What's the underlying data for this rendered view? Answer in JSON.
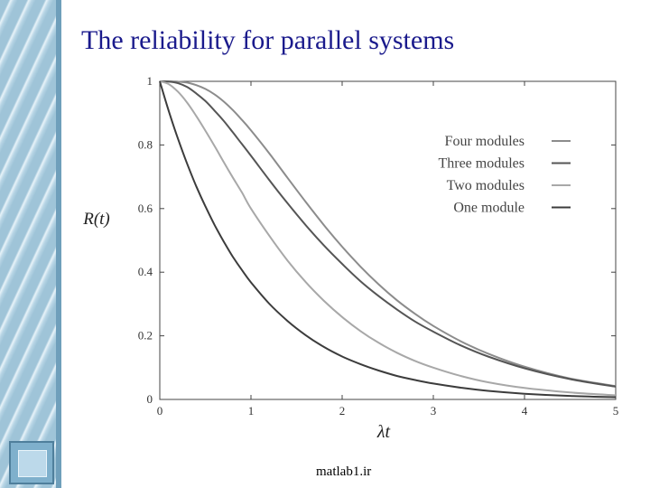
{
  "slide": {
    "title": "The reliability for parallel systems",
    "footer": "matlab1.ir"
  },
  "colors": {
    "title": "#1a1a8c",
    "sidebar": "#9fc4d8"
  },
  "chart_data": {
    "type": "line",
    "title": "",
    "xlabel": "λt",
    "ylabel": "R(t)",
    "xlim": [
      0,
      5
    ],
    "ylim": [
      0,
      1
    ],
    "xticks": [
      "0",
      "1",
      "2",
      "3",
      "4",
      "5"
    ],
    "yticks": [
      "0",
      "0.2",
      "0.4",
      "0.6",
      "0.8",
      "1"
    ],
    "legend_position": "top-right",
    "x": [
      0,
      0.1,
      0.2,
      0.3,
      0.4,
      0.5,
      0.6,
      0.7,
      0.8,
      0.9,
      1.0,
      1.2,
      1.4,
      1.6,
      1.8,
      2.0,
      2.2,
      2.4,
      2.6,
      2.8,
      3.0,
      3.3,
      3.6,
      4.0,
      4.5,
      5.0
    ],
    "series": [
      {
        "name": "Four modules",
        "color": "#8c8c8c",
        "values": [
          1.0,
          1.0,
          0.999,
          0.996,
          0.988,
          0.976,
          0.959,
          0.937,
          0.91,
          0.879,
          0.846,
          0.774,
          0.697,
          0.621,
          0.548,
          0.48,
          0.418,
          0.362,
          0.312,
          0.269,
          0.231,
          0.183,
          0.144,
          0.103,
          0.066,
          0.042
        ]
      },
      {
        "name": "Three modules",
        "color": "#555555",
        "values": [
          1.0,
          0.999,
          0.994,
          0.982,
          0.962,
          0.938,
          0.908,
          0.876,
          0.84,
          0.803,
          0.766,
          0.69,
          0.617,
          0.548,
          0.484,
          0.426,
          0.372,
          0.325,
          0.283,
          0.245,
          0.213,
          0.17,
          0.135,
          0.098,
          0.064,
          0.04
        ]
      },
      {
        "name": "Two modules",
        "color": "#a8a8a8",
        "values": [
          1.0,
          0.991,
          0.967,
          0.933,
          0.891,
          0.845,
          0.797,
          0.747,
          0.698,
          0.651,
          0.6,
          0.515,
          0.437,
          0.369,
          0.31,
          0.259,
          0.215,
          0.178,
          0.147,
          0.121,
          0.1,
          0.074,
          0.054,
          0.036,
          0.022,
          0.013
        ]
      },
      {
        "name": "One module",
        "color": "#3c3c3c",
        "values": [
          1.0,
          0.905,
          0.819,
          0.741,
          0.67,
          0.607,
          0.549,
          0.497,
          0.449,
          0.407,
          0.368,
          0.301,
          0.247,
          0.202,
          0.165,
          0.135,
          0.111,
          0.091,
          0.074,
          0.061,
          0.05,
          0.037,
          0.027,
          0.018,
          0.011,
          0.007
        ]
      }
    ]
  }
}
